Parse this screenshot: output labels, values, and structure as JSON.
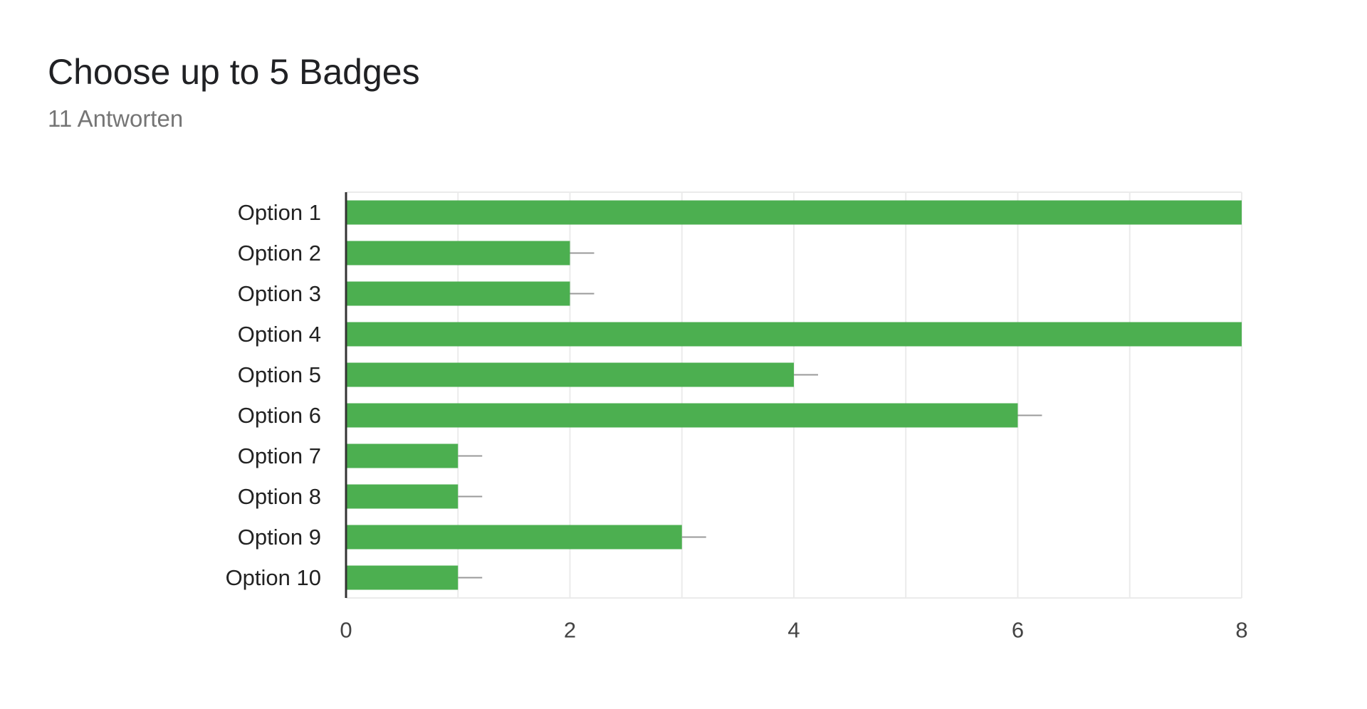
{
  "header": {
    "title": "Choose up to 5 Badges",
    "subtitle": "11 Antworten"
  },
  "colors": {
    "bar": "#4caf50",
    "grid": "#ebebeb",
    "axis": "#333333",
    "error_bar": "#999999",
    "background": "#ffffff"
  },
  "chart_data": {
    "type": "bar",
    "orientation": "horizontal",
    "title": "Choose up to 5 Badges",
    "subtitle": "11 Antworten",
    "categories": [
      "Option 1",
      "Option 2",
      "Option 3",
      "Option 4",
      "Option 5",
      "Option 6",
      "Option 7",
      "Option 8",
      "Option 9",
      "Option 10"
    ],
    "values": [
      8,
      2,
      2,
      8,
      4,
      6,
      1,
      1,
      3,
      1
    ],
    "xlim": [
      0,
      8
    ],
    "xticks": [
      "0",
      "2",
      "4",
      "6",
      "8"
    ],
    "xlabel": "",
    "ylabel": "",
    "grid": true,
    "legend": "none"
  }
}
